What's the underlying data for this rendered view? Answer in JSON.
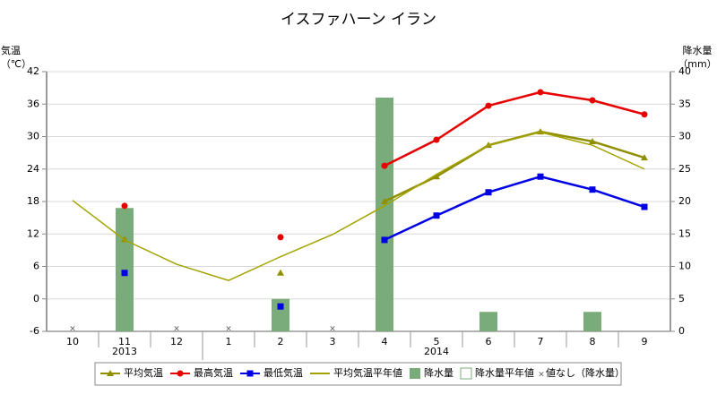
{
  "chart_data": {
    "type": "line",
    "title": "イスファハーン イラン",
    "y_label": [
      "気温",
      "（℃）"
    ],
    "y2_label": [
      "降水量",
      "（mm）"
    ],
    "categories": [
      "10",
      "11",
      "12",
      "1",
      "2",
      "3",
      "4",
      "5",
      "6",
      "7",
      "8",
      "9"
    ],
    "years": [
      {
        "label": "2013",
        "from": 0,
        "to": 2
      },
      {
        "label": "2014",
        "from": 3,
        "to": 11
      }
    ],
    "ylim": [
      -6,
      42
    ],
    "yticks": [
      -6,
      0,
      6,
      12,
      18,
      24,
      30,
      36,
      42
    ],
    "y2lim": [
      0,
      40
    ],
    "y2ticks": [
      0,
      5,
      10,
      15,
      20,
      25,
      30,
      35,
      40
    ],
    "grid": true,
    "series": [
      {
        "name": "平均気温",
        "type": "line",
        "marker": "triangle",
        "color": "#8f8f00",
        "values": [
          null,
          11.0,
          null,
          null,
          4.8,
          null,
          18.0,
          22.6,
          28.4,
          30.9,
          29.1,
          26.1
        ]
      },
      {
        "name": "最高気温",
        "type": "line",
        "marker": "circle",
        "color": "#e60000",
        "values": [
          null,
          17.2,
          null,
          null,
          11.4,
          null,
          24.6,
          29.4,
          35.7,
          38.2,
          36.7,
          34.1
        ]
      },
      {
        "name": "最低気温",
        "type": "line",
        "marker": "square",
        "color": "#0000e6",
        "values": [
          null,
          4.8,
          null,
          null,
          -1.4,
          null,
          10.9,
          15.4,
          19.7,
          22.6,
          20.2,
          17.0
        ]
      },
      {
        "name": "平均気温平年値",
        "type": "line",
        "marker": "none",
        "color": "#a3a300",
        "values": [
          18.2,
          10.9,
          6.4,
          3.4,
          7.8,
          11.9,
          17.2,
          23.0,
          28.4,
          30.8,
          28.4,
          24.0
        ]
      },
      {
        "name": "降水量",
        "type": "bar",
        "axis": "y2",
        "color": "#7aab7a",
        "values": [
          null,
          19,
          null,
          null,
          5,
          null,
          36,
          0,
          3,
          0,
          3,
          0
        ]
      }
    ],
    "legend_extra": [
      "降水量平年値",
      "値なし（降水量）"
    ]
  }
}
